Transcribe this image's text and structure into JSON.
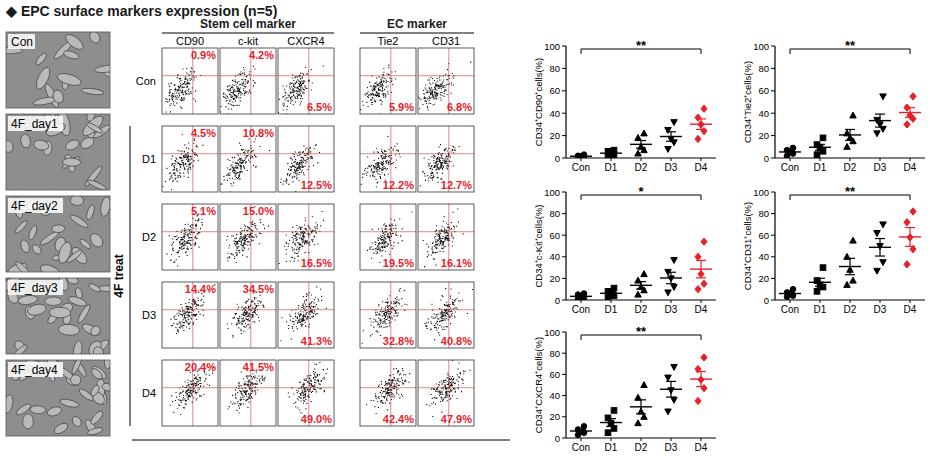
{
  "header": {
    "title": "◆ EPC surface markers expression (n=5)"
  },
  "images": [
    {
      "label": "Con"
    },
    {
      "label": "4F_day1"
    },
    {
      "label": "4F_day2"
    },
    {
      "label": "4F_day3"
    },
    {
      "label": "4F_day4"
    }
  ],
  "flow": {
    "groups": [
      {
        "label": "Stem cell marker",
        "markers": [
          "CD90",
          "c-kit",
          "CXCR4"
        ]
      },
      {
        "label": "EC marker",
        "markers": [
          "Tie2",
          "CD31"
        ]
      }
    ],
    "treatment_label": "4F treat",
    "rows": [
      {
        "label": "Con",
        "values": [
          "0.9%",
          "4.2%",
          "6.5%",
          "5.9%",
          "6.8%"
        ]
      },
      {
        "label": "D1",
        "values": [
          "4.5%",
          "10.8%",
          "12.5%",
          "12.2%",
          "12.7%"
        ]
      },
      {
        "label": "D2",
        "values": [
          "5.1%",
          "15.0%",
          "16.5%",
          "19.5%",
          "16.1%"
        ]
      },
      {
        "label": "D3",
        "values": [
          "14.4%",
          "34.5%",
          "41.3%",
          "32.8%",
          "40.8%"
        ]
      },
      {
        "label": "D4",
        "values": [
          "20.4%",
          "41.5%",
          "49.0%",
          "42.4%",
          "47.9%"
        ]
      }
    ]
  },
  "chart_data": [
    {
      "type": "scatter",
      "y_label": "CD34⁺CD90⁺cells(%)",
      "categories": [
        "Con",
        "D1",
        "D2",
        "D3",
        "D4"
      ],
      "ylim": [
        0,
        100
      ],
      "yticks": [
        0,
        20,
        40,
        60,
        80,
        100
      ],
      "grid": false,
      "series": [
        {
          "color": "#000000",
          "marker": "circle",
          "values": [
            0.5,
            1,
            1.5,
            2,
            3
          ],
          "mean": 1.6,
          "error": 0.4
        },
        {
          "color": "#000000",
          "marker": "square",
          "values": [
            1.5,
            3,
            4,
            6,
            7
          ],
          "mean": 4.3,
          "error": 1.0
        },
        {
          "color": "#000000",
          "marker": "triangle",
          "values": [
            4,
            7,
            10,
            18,
            22
          ],
          "mean": 12.2,
          "error": 3.4
        },
        {
          "color": "#000000",
          "marker": "triangle-down",
          "values": [
            8,
            14,
            17,
            25,
            32
          ],
          "mean": 19.2,
          "error": 4.2
        },
        {
          "color": "#e8202a",
          "marker": "diamond",
          "values": [
            17,
            24,
            30,
            36,
            44
          ],
          "mean": 30.2,
          "error": 4.7
        }
      ],
      "annotations": [
        {
          "text": "**",
          "categories": [
            "Con",
            "D4"
          ]
        }
      ]
    },
    {
      "type": "scatter",
      "y_label": "CD34⁺Tie2⁺cells(%)",
      "categories": [
        "Con",
        "D1",
        "D2",
        "D3",
        "D4"
      ],
      "ylim": [
        0,
        100
      ],
      "yticks": [
        0,
        20,
        40,
        60,
        80,
        100
      ],
      "grid": false,
      "series": [
        {
          "color": "#000000",
          "marker": "circle",
          "values": [
            2,
            4,
            5,
            7,
            9
          ],
          "mean": 5.4,
          "error": 1.2
        },
        {
          "color": "#000000",
          "marker": "square",
          "values": [
            3,
            6,
            9,
            12,
            18
          ],
          "mean": 9.6,
          "error": 2.6
        },
        {
          "color": "#000000",
          "marker": "triangle",
          "values": [
            10,
            15,
            18,
            22,
            38
          ],
          "mean": 20.6,
          "error": 4.9
        },
        {
          "color": "#000000",
          "marker": "triangle-down",
          "values": [
            22,
            26,
            30,
            34,
            55
          ],
          "mean": 33.4,
          "error": 5.8
        },
        {
          "color": "#e8202a",
          "marker": "diamond",
          "values": [
            30,
            35,
            38,
            45,
            55
          ],
          "mean": 40.6,
          "error": 4.3
        }
      ],
      "annotations": [
        {
          "text": "**",
          "categories": [
            "Con",
            "D4"
          ]
        }
      ]
    },
    {
      "type": "scatter",
      "y_label": "CD34⁺c-Kit⁺cells(%)",
      "categories": [
        "Con",
        "D1",
        "D2",
        "D3",
        "D4"
      ],
      "ylim": [
        0,
        100
      ],
      "yticks": [
        0,
        20,
        40,
        60,
        80,
        100
      ],
      "grid": false,
      "series": [
        {
          "color": "#000000",
          "marker": "circle",
          "values": [
            1,
            2,
            3,
            5,
            6
          ],
          "mean": 3.4,
          "error": 0.9
        },
        {
          "color": "#000000",
          "marker": "square",
          "values": [
            2,
            4,
            6,
            8,
            11
          ],
          "mean": 6.2,
          "error": 1.6
        },
        {
          "color": "#000000",
          "marker": "triangle",
          "values": [
            5,
            9,
            12,
            18,
            24
          ],
          "mean": 13.6,
          "error": 3.4
        },
        {
          "color": "#000000",
          "marker": "triangle-down",
          "values": [
            7,
            12,
            20,
            26,
            37
          ],
          "mean": 20.4,
          "error": 5.3
        },
        {
          "color": "#e8202a",
          "marker": "diamond",
          "values": [
            10,
            15,
            24,
            40,
            54
          ],
          "mean": 28.6,
          "error": 8.1
        }
      ],
      "annotations": [
        {
          "text": "*",
          "categories": [
            "Con",
            "D4"
          ]
        }
      ]
    },
    {
      "type": "scatter",
      "y_label": "CD34⁺CD31⁺cells(%)",
      "categories": [
        "Con",
        "D1",
        "D2",
        "D3",
        "D4"
      ],
      "ylim": [
        0,
        100
      ],
      "yticks": [
        0,
        20,
        40,
        60,
        80,
        100
      ],
      "grid": false,
      "series": [
        {
          "color": "#000000",
          "marker": "circle",
          "values": [
            3,
            4,
            6,
            7,
            10
          ],
          "mean": 6,
          "error": 1.2
        },
        {
          "color": "#000000",
          "marker": "square",
          "values": [
            8,
            12,
            14,
            18,
            30
          ],
          "mean": 16.4,
          "error": 3.7
        },
        {
          "color": "#000000",
          "marker": "triangle",
          "values": [
            14,
            18,
            28,
            40,
            55
          ],
          "mean": 31,
          "error": 7.6
        },
        {
          "color": "#000000",
          "marker": "triangle-down",
          "values": [
            27,
            35,
            50,
            62,
            70
          ],
          "mean": 48.8,
          "error": 8.1
        },
        {
          "color": "#e8202a",
          "marker": "diamond",
          "values": [
            33,
            47,
            58,
            72,
            82
          ],
          "mean": 58.4,
          "error": 8.7
        }
      ],
      "annotations": [
        {
          "text": "**",
          "categories": [
            "Con",
            "D4"
          ]
        }
      ]
    },
    {
      "type": "scatter",
      "y_label": "CD34⁺CXCR4⁺cells(%)",
      "categories": [
        "Con",
        "D1",
        "D2",
        "D3",
        "D4"
      ],
      "ylim": [
        0,
        100
      ],
      "yticks": [
        0,
        20,
        40,
        60,
        80,
        100
      ],
      "grid": false,
      "series": [
        {
          "color": "#000000",
          "marker": "circle",
          "values": [
            3,
            5,
            6,
            8,
            11
          ],
          "mean": 6.6,
          "error": 1.4
        },
        {
          "color": "#000000",
          "marker": "square",
          "values": [
            5,
            9,
            14,
            19,
            26
          ],
          "mean": 14.6,
          "error": 3.7
        },
        {
          "color": "#000000",
          "marker": "triangle",
          "values": [
            14,
            20,
            25,
            38,
            50
          ],
          "mean": 29.4,
          "error": 6.6
        },
        {
          "color": "#000000",
          "marker": "triangle-down",
          "values": [
            25,
            36,
            45,
            57,
            67
          ],
          "mean": 46,
          "error": 7.4
        },
        {
          "color": "#e8202a",
          "marker": "diamond",
          "values": [
            35,
            47,
            55,
            65,
            76
          ],
          "mean": 55.6,
          "error": 7.1
        }
      ],
      "annotations": [
        {
          "text": "**",
          "categories": [
            "Con",
            "D4"
          ]
        }
      ]
    }
  ]
}
